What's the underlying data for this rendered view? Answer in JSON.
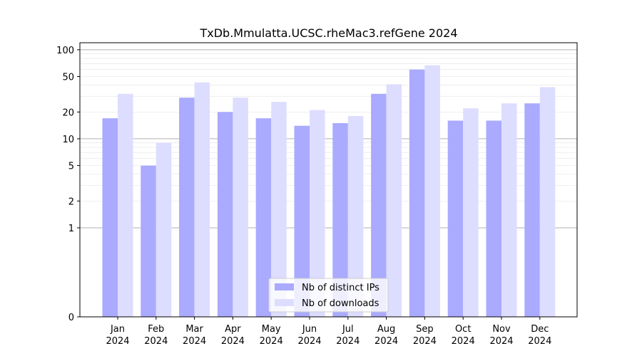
{
  "chart_data": {
    "type": "bar",
    "title": "TxDb.Mmulatta.UCSC.rheMac3.refGene 2024",
    "xlabel": "",
    "ylabel": "",
    "y_scale": "symlog",
    "ylim": [
      0,
      120
    ],
    "y_ticks": [
      0,
      1,
      2,
      5,
      10,
      20,
      50,
      100
    ],
    "categories": [
      [
        "Jan",
        "2024"
      ],
      [
        "Feb",
        "2024"
      ],
      [
        "Mar",
        "2024"
      ],
      [
        "Apr",
        "2024"
      ],
      [
        "May",
        "2024"
      ],
      [
        "Jun",
        "2024"
      ],
      [
        "Jul",
        "2024"
      ],
      [
        "Aug",
        "2024"
      ],
      [
        "Sep",
        "2024"
      ],
      [
        "Oct",
        "2024"
      ],
      [
        "Nov",
        "2024"
      ],
      [
        "Dec",
        "2024"
      ]
    ],
    "series": [
      {
        "name": "Nb of distinct IPs",
        "color": "#aaaaff",
        "values": [
          17,
          5,
          29,
          20,
          17,
          14,
          15,
          32,
          60,
          16,
          16,
          25
        ]
      },
      {
        "name": "Nb of downloads",
        "color": "#ddddff",
        "values": [
          32,
          9,
          43,
          29,
          26,
          21,
          18,
          41,
          67,
          22,
          25,
          38
        ]
      }
    ],
    "legend_position": "bottom-center",
    "grid": true
  }
}
